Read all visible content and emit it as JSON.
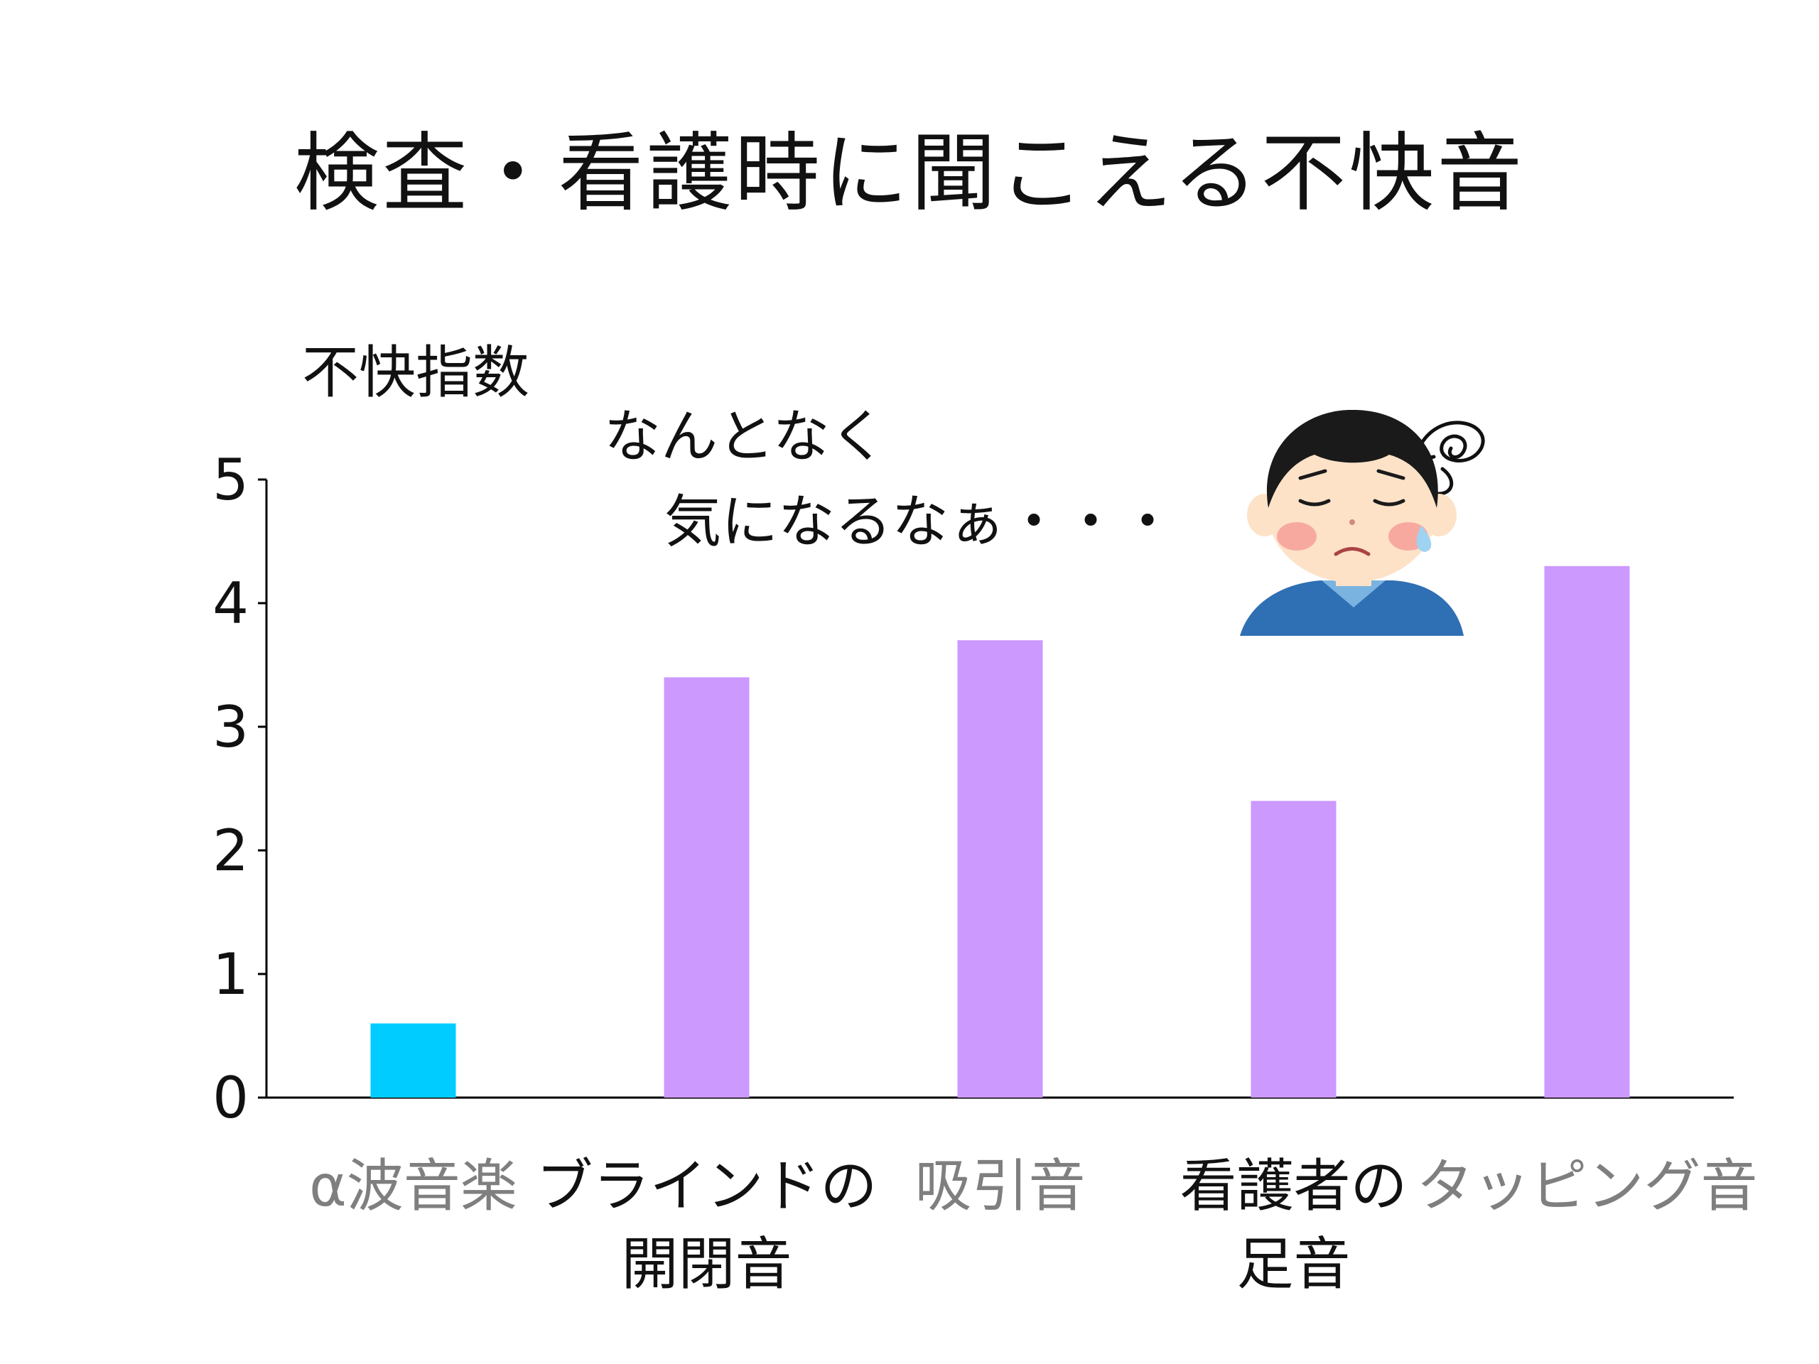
{
  "title": "検査・看護時に聞こえる不快音",
  "annotation": {
    "line1": "なんとなく",
    "line2": "気になるなぁ・・・"
  },
  "chart_data": {
    "type": "bar",
    "title": "検査・看護時に聞こえる不快音",
    "ylabel": "不快指数",
    "xlabel": "",
    "ylim": [
      0,
      5
    ],
    "yticks": [
      "0",
      "1",
      "2",
      "3",
      "4",
      "5"
    ],
    "categories": [
      {
        "line1": "α波音楽",
        "line2": "",
        "color_text": "#7f7f7f"
      },
      {
        "line1": "ブラインドの",
        "line2": "開閉音",
        "color_text": "#111111"
      },
      {
        "line1": "吸引音",
        "line2": "",
        "color_text": "#7f7f7f"
      },
      {
        "line1": "看護者の",
        "line2": "足音",
        "color_text": "#111111"
      },
      {
        "line1": "タッピング音",
        "line2": "",
        "color_text": "#7f7f7f"
      }
    ],
    "values": [
      0.6,
      3.4,
      3.7,
      2.4,
      4.3
    ],
    "bar_colors": [
      "#00ccff",
      "#cc99ff",
      "#cc99ff",
      "#cc99ff",
      "#cc99ff"
    ],
    "grid": false,
    "legend": "none"
  },
  "illustration": {
    "icon": "worried-boy-icon",
    "colors": {
      "hair": "#1a1a1a",
      "skin": "#fde2c8",
      "cheek": "#f7a9a0",
      "shirt": "#2f6fb3",
      "collar": "#7ab3e0",
      "sweat": "#9fd3f2"
    }
  }
}
